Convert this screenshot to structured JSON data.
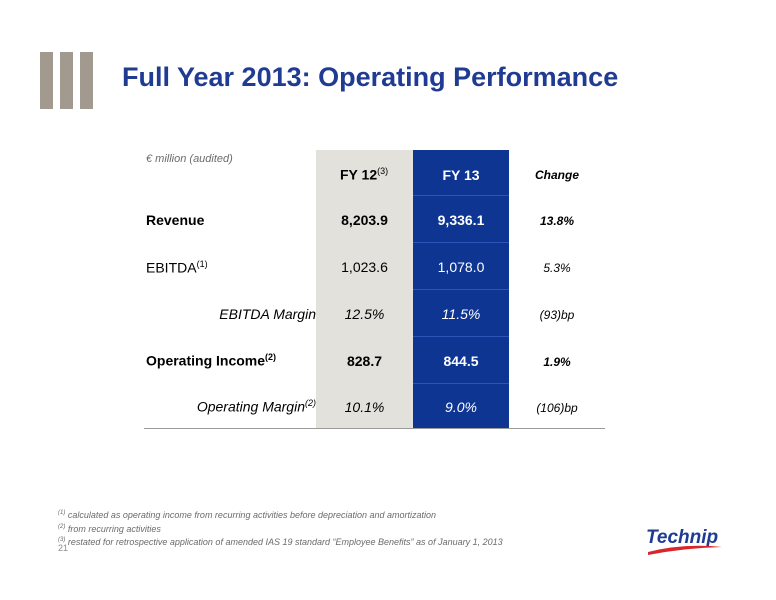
{
  "header": {
    "title": "Full Year 2013: Operating Performance"
  },
  "table": {
    "unit_note": "€ million (audited)",
    "col_fy12": "FY 12",
    "col_fy12_note": "(3)",
    "col_fy13": "FY 13",
    "col_change": "Change",
    "rows": [
      {
        "label": "Revenue",
        "note": "",
        "fy12": "8,203.9",
        "fy13": "9,336.1",
        "change": "13.8%"
      },
      {
        "label": "EBITDA",
        "note": "(1)",
        "fy12": "1,023.6",
        "fy13": "1,078.0",
        "change": "5.3%"
      },
      {
        "label": "EBITDA Margin",
        "note": "",
        "fy12": "12.5%",
        "fy13": "11.5%",
        "change": "(93)bp"
      },
      {
        "label": "Operating Income",
        "note": "(2)",
        "fy12": "828.7",
        "fy13": "844.5",
        "change": "1.9%"
      },
      {
        "label": "Operating Margin",
        "note": "(2)",
        "fy12": "10.1%",
        "fy13": "9.0%",
        "change": "(106)bp"
      }
    ]
  },
  "footnotes": [
    {
      "mark": "(1)",
      "text": "calculated as operating income from recurring activities before depreciation and amortization"
    },
    {
      "mark": "(2)",
      "text": "from recurring activities"
    },
    {
      "mark": "(3)",
      "text": "restated for retrospective application of amended IAS 19 standard “Employee Benefits” as of January 1, 2013"
    }
  ],
  "page_number": "21",
  "logo": {
    "text": "Technip",
    "color": "#1f3b92",
    "swoosh_color": "#d7262e"
  },
  "colors": {
    "title": "#1f3b92",
    "fy13_column": "#0e3592",
    "fy12_column": "#e3e1dc",
    "decor_bars": "#a39a8f"
  }
}
